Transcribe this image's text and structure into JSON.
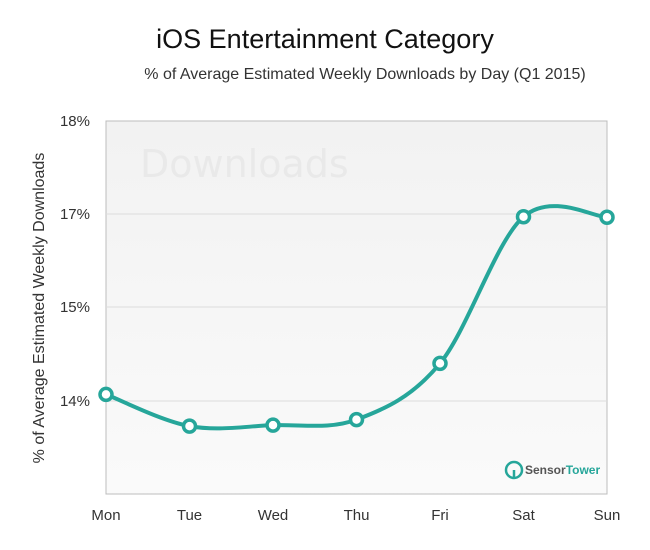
{
  "chart_data": {
    "type": "line",
    "title": "iOS Entertainment Category",
    "subtitle": "% of Average Estimated Weekly Downloads by Day (Q1 2015)",
    "xlabel": "",
    "ylabel": "% of Average Estimated Weekly Downloads",
    "categories": [
      "Mon",
      "Tue",
      "Wed",
      "Thu",
      "Fri",
      "Sat",
      "Sun"
    ],
    "y_ticks": [
      "18%",
      "17%",
      "15%",
      "14%"
    ],
    "series": [
      {
        "values": [
          14.07,
          13.73,
          13.74,
          13.8,
          14.4,
          16.94,
          16.93
        ]
      }
    ],
    "ylim": [
      13,
      18
    ],
    "grid": true,
    "line_color": "#26a69a",
    "watermark": "Downloads",
    "brand": {
      "part1": "Sensor",
      "part2": "Tower"
    }
  }
}
